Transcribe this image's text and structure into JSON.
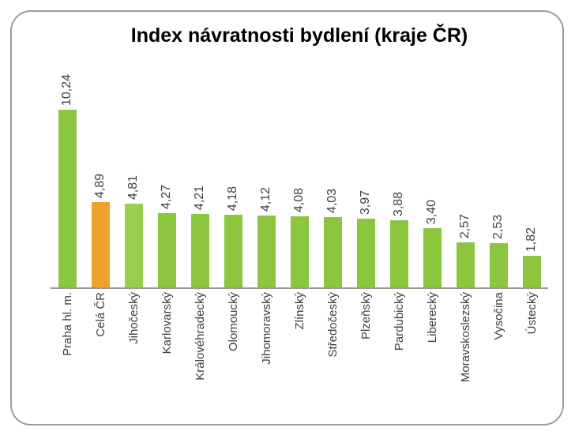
{
  "chart_data": {
    "type": "bar",
    "title": "Index návratnosti bydlení (kraje ČR)",
    "categories": [
      "Praha hl. m.",
      "Celá ČR",
      "Jihočeský",
      "Karlovarský",
      "Královéhradecký",
      "Olomoucký",
      "Jihomoravský",
      "Zlínský",
      "Středočeský",
      "Plzeňský",
      "Pardubický",
      "Liberecký",
      "Moravskoslezský",
      "Vysočina",
      "Ústecký"
    ],
    "values": [
      10.24,
      4.89,
      4.81,
      4.27,
      4.21,
      4.18,
      4.12,
      4.08,
      4.03,
      3.97,
      3.88,
      3.4,
      2.57,
      2.53,
      1.82
    ],
    "value_labels": [
      "10,24",
      "4,89",
      "4,81",
      "4,27",
      "4,21",
      "4,18",
      "4,12",
      "4,08",
      "4,03",
      "3,97",
      "3,88",
      "3,40",
      "2,57",
      "2,53",
      "1,82"
    ],
    "bar_colors": [
      "#8CC63E",
      "#F0A02D",
      "#97CF4F",
      "#8CC63E",
      "#8CC63E",
      "#8CC63E",
      "#8CC63E",
      "#8CC63E",
      "#8CC63E",
      "#8CC63E",
      "#8CC63E",
      "#8CC63E",
      "#8CC63E",
      "#8CC63E",
      "#8CC63E"
    ],
    "palette": {
      "default_green": "#8CC63E",
      "highlight_orange": "#F0A02D",
      "highlight_light_green": "#97CF4F",
      "axis_line": "#9A9A9A",
      "label_text": "#3F3F3F",
      "frame_border": "#9C9C9C"
    },
    "xlabel": "",
    "ylabel": "",
    "ylim": [
      0,
      12.5
    ],
    "grid": false,
    "legend": false,
    "value_label_rotation_deg": 90,
    "category_label_rotation_deg": 90
  }
}
